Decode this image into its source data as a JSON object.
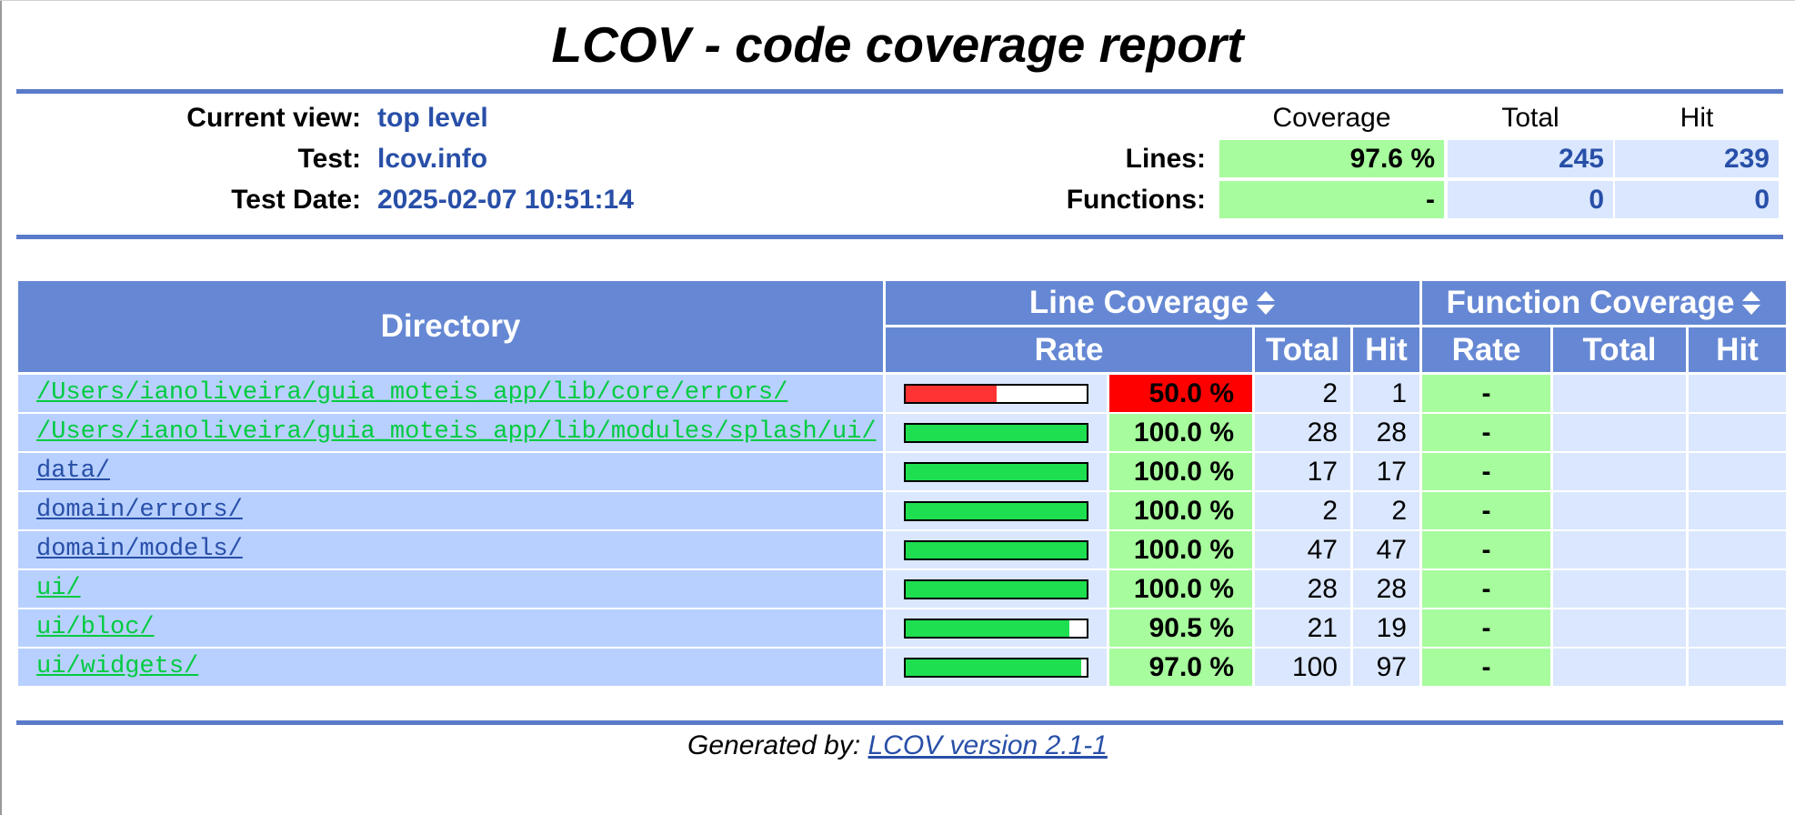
{
  "title": "LCOV - code coverage report",
  "header": {
    "current_view_label": "Current view:",
    "current_view_value": "top level",
    "test_label": "Test:",
    "test_value": "lcov.info",
    "test_date_label": "Test Date:",
    "test_date_value": "2025-02-07 10:51:14",
    "col_coverage": "Coverage",
    "col_total": "Total",
    "col_hit": "Hit",
    "lines_label": "Lines:",
    "lines_coverage": "97.6 %",
    "lines_total": "245",
    "lines_hit": "239",
    "functions_label": "Functions:",
    "functions_coverage": "-",
    "functions_total": "0",
    "functions_hit": "0"
  },
  "table": {
    "col_directory": "Directory",
    "col_line_coverage": "Line Coverage",
    "col_function_coverage": "Function Coverage",
    "col_rate": "Rate",
    "col_total": "Total",
    "col_hit": "Hit",
    "rows": [
      {
        "directory": "/Users/ianoliveira/guia_moteis_app/lib/core/errors/",
        "link_color": "green",
        "line_percent": 50.0,
        "line_rate": "50.0 %",
        "line_total": "2",
        "line_hit": "1",
        "function_rate": "-"
      },
      {
        "directory": "/Users/ianoliveira/guia_moteis_app/lib/modules/splash/ui/",
        "link_color": "green",
        "line_percent": 100.0,
        "line_rate": "100.0 %",
        "line_total": "28",
        "line_hit": "28",
        "function_rate": "-"
      },
      {
        "directory": "data/",
        "link_color": "blue",
        "line_percent": 100.0,
        "line_rate": "100.0 %",
        "line_total": "17",
        "line_hit": "17",
        "function_rate": "-"
      },
      {
        "directory": "domain/errors/",
        "link_color": "blue",
        "line_percent": 100.0,
        "line_rate": "100.0 %",
        "line_total": "2",
        "line_hit": "2",
        "function_rate": "-"
      },
      {
        "directory": "domain/models/",
        "link_color": "blue",
        "line_percent": 100.0,
        "line_rate": "100.0 %",
        "line_total": "47",
        "line_hit": "47",
        "function_rate": "-"
      },
      {
        "directory": "ui/",
        "link_color": "green",
        "line_percent": 100.0,
        "line_rate": "100.0 %",
        "line_total": "28",
        "line_hit": "28",
        "function_rate": "-"
      },
      {
        "directory": "ui/bloc/",
        "link_color": "green",
        "line_percent": 90.5,
        "line_rate": "90.5 %",
        "line_total": "21",
        "line_hit": "19",
        "function_rate": "-"
      },
      {
        "directory": "ui/widgets/",
        "link_color": "green",
        "line_percent": 97.0,
        "line_rate": "97.0 %",
        "line_total": "100",
        "line_hit": "97",
        "function_rate": "-"
      }
    ]
  },
  "footer": {
    "generated_by": "Generated by:",
    "link_text": "LCOV version 2.1-1"
  },
  "colors": {
    "rule_blue": "#5a7bc9",
    "header_blue": "#6688d4",
    "dir_cell": "#b8d0ff",
    "number_cell": "#dae7fe",
    "coverage_hi": "#a7fc9d",
    "coverage_lo": "#ff0000",
    "bar_hi": "#1edf4f",
    "bar_lo": "#ff3333",
    "link_blue": "#284fa8",
    "link_green": "#00cb40"
  }
}
